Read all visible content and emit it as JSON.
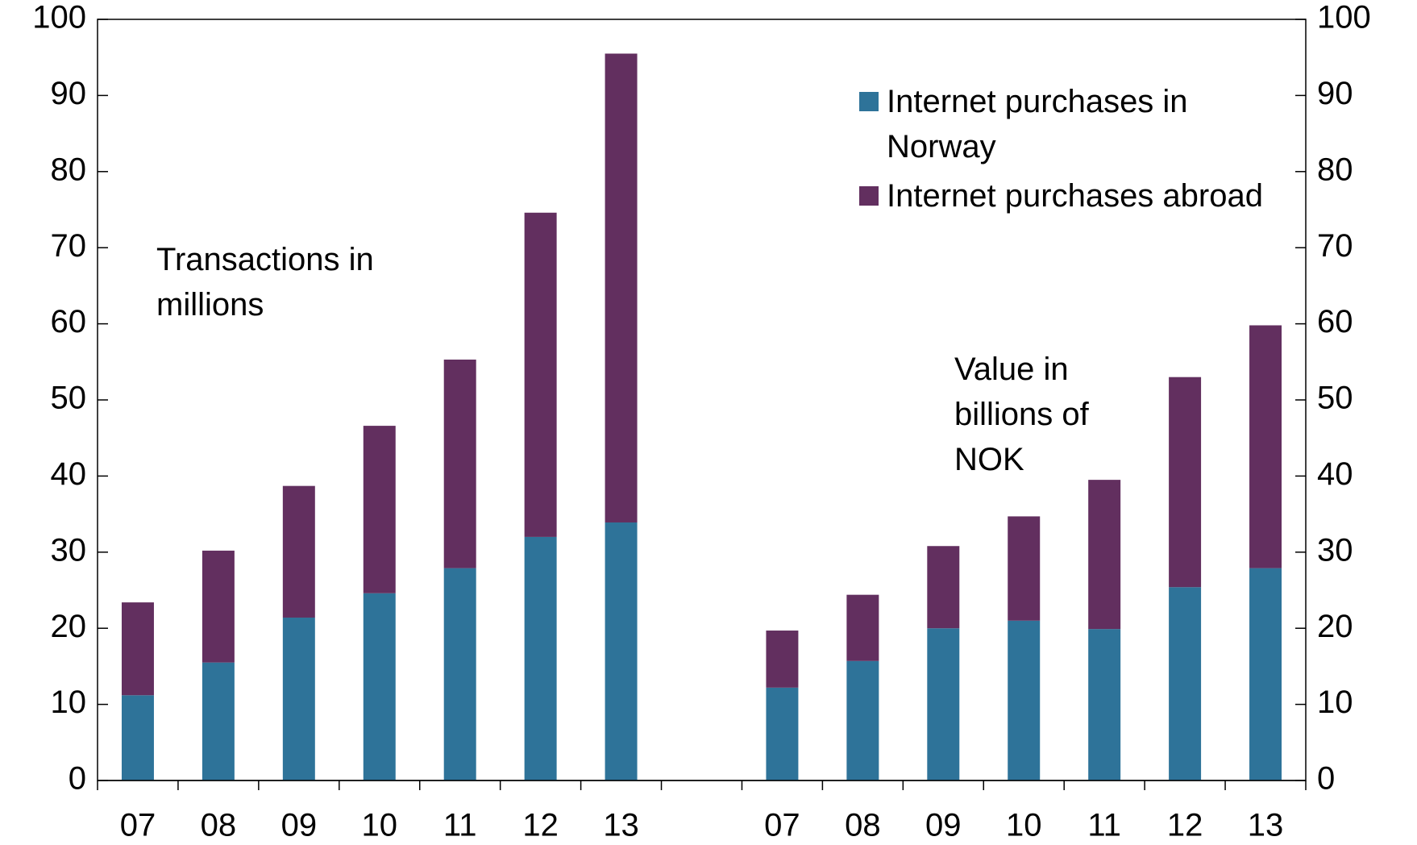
{
  "chart_data": {
    "type": "bar",
    "stacked": true,
    "categories": [
      "07",
      "08",
      "09",
      "10",
      "11",
      "12",
      "13",
      null,
      "07",
      "08",
      "09",
      "10",
      "11",
      "12",
      "13"
    ],
    "series": [
      {
        "name": "Internet purchases in Norway",
        "color": "#2e7399",
        "values": [
          11.2,
          15.5,
          21.4,
          24.6,
          27.9,
          32.0,
          33.9,
          null,
          12.2,
          15.7,
          20.0,
          21.0,
          19.9,
          25.4,
          27.9
        ]
      },
      {
        "name": "Internet purchases abroad",
        "color": "#622f5f",
        "values": [
          12.2,
          14.7,
          17.3,
          22.0,
          27.4,
          42.6,
          61.6,
          null,
          7.5,
          8.7,
          10.8,
          13.7,
          19.6,
          27.6,
          31.9
        ]
      }
    ],
    "annotations": [
      "Transactions in millions",
      "Value in billions of NOK"
    ],
    "ylim": [
      0,
      100
    ],
    "yticks": [
      0,
      10,
      20,
      30,
      40,
      50,
      60,
      70,
      80,
      90,
      100
    ],
    "y2lim": [
      0,
      100
    ],
    "y2ticks": [
      0,
      10,
      20,
      30,
      40,
      50,
      60,
      70,
      80,
      90,
      100
    ],
    "grid": false,
    "legend": "upper right"
  }
}
